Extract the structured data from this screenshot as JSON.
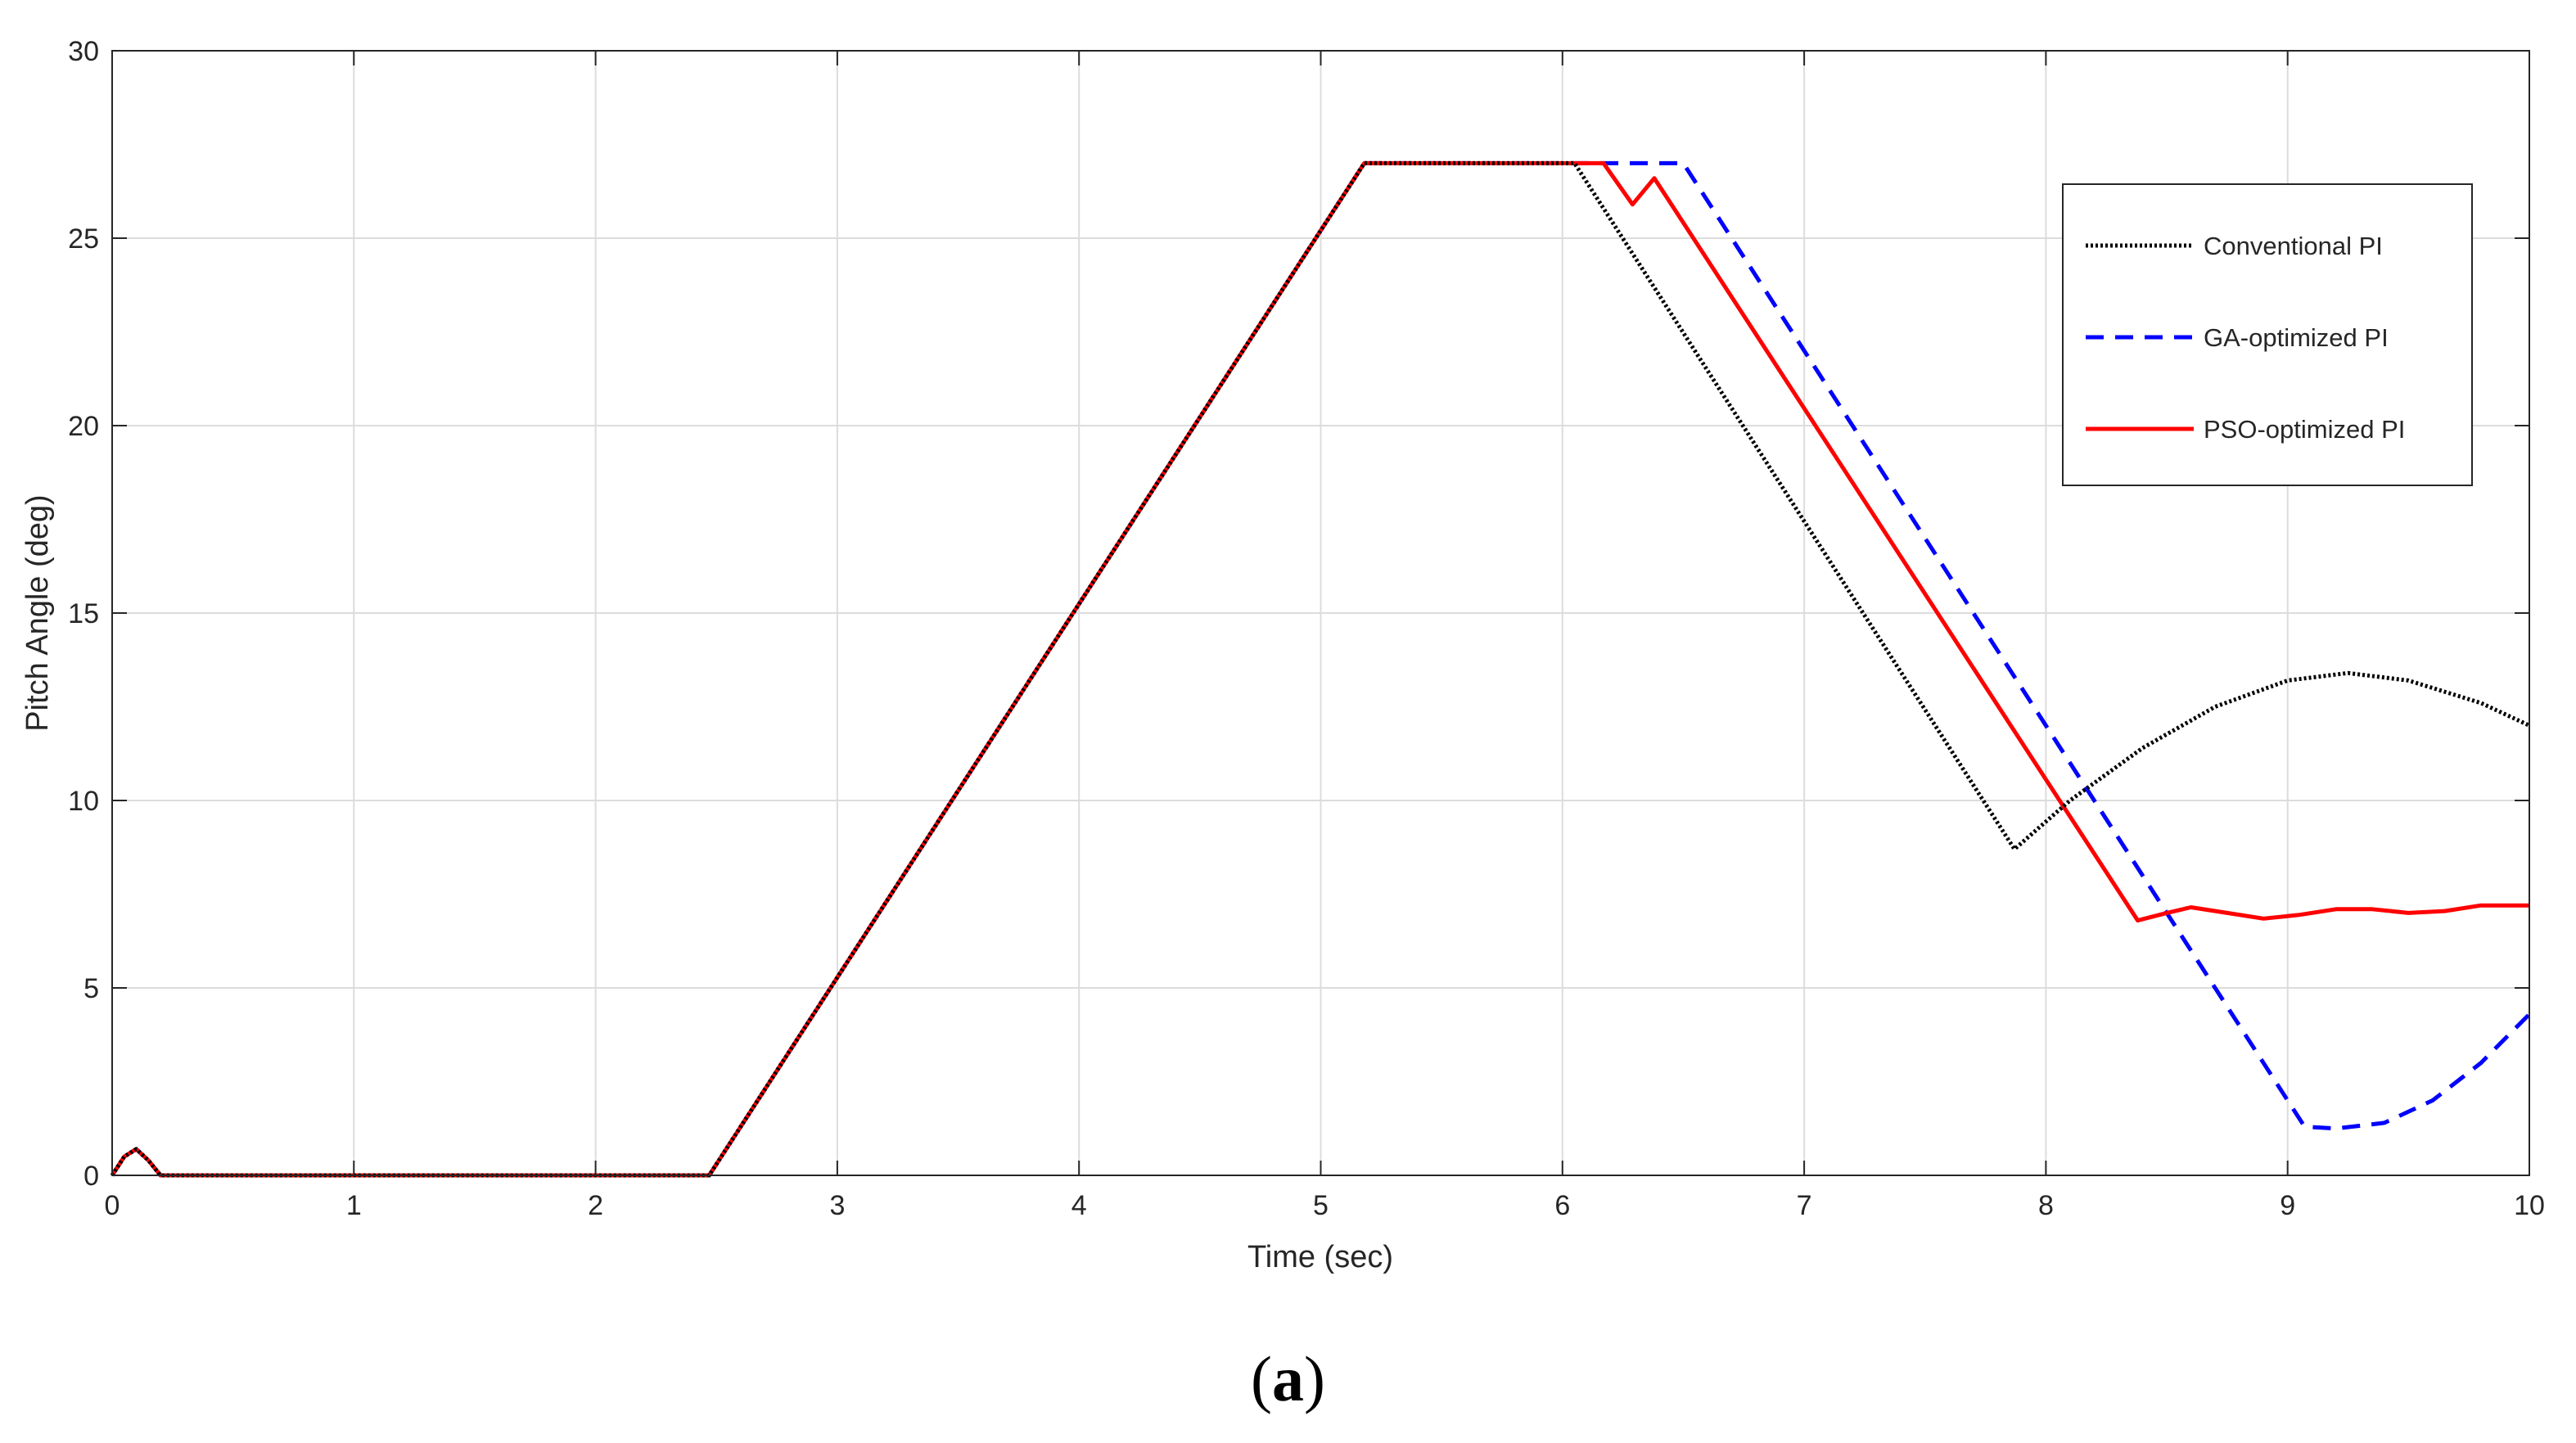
{
  "colors": {
    "conventional": "#000000",
    "ga": "#0000FF",
    "pso": "#FF0000",
    "grid": "#DCDCDC",
    "axes": "#262626"
  },
  "panel_label": {
    "open": "(",
    "letter": "a",
    "close": ")"
  },
  "chart_data": {
    "type": "line",
    "xlabel": "Time (sec)",
    "ylabel": "Pitch Angle (deg)",
    "xlim": [
      0,
      10
    ],
    "ylim": [
      0,
      30
    ],
    "xticks": [
      0,
      1,
      2,
      3,
      4,
      5,
      6,
      7,
      8,
      9,
      10
    ],
    "yticks": [
      0,
      5,
      10,
      15,
      20,
      25,
      30
    ],
    "grid": true,
    "box": true,
    "legend_position": "top-right",
    "series": [
      {
        "name": "Conventional PI",
        "style": "dotted",
        "color_key": "conventional",
        "x": [
          0,
          0.05,
          0.1,
          0.15,
          0.2,
          2.47,
          5.18,
          6.05,
          7.87,
          8.1,
          8.4,
          8.7,
          9.0,
          9.25,
          9.5,
          9.8,
          10.0
        ],
        "y": [
          0,
          0.5,
          0.7,
          0.4,
          0,
          0,
          27,
          27,
          8.7,
          10.0,
          11.4,
          12.5,
          13.2,
          13.4,
          13.2,
          12.6,
          12.0
        ]
      },
      {
        "name": "GA-optimized PI",
        "style": "dashed",
        "color_key": "ga",
        "x": [
          0,
          0.05,
          0.1,
          0.15,
          0.2,
          2.47,
          5.18,
          6.5,
          9.07,
          9.2,
          9.4,
          9.6,
          9.8,
          10.0
        ],
        "y": [
          0,
          0.5,
          0.7,
          0.4,
          0,
          0,
          27,
          27,
          1.3,
          1.25,
          1.4,
          2.0,
          3.0,
          4.3
        ]
      },
      {
        "name": "PSO-optimized PI",
        "style": "solid",
        "color_key": "pso",
        "x": [
          0,
          0.05,
          0.1,
          0.15,
          0.2,
          2.47,
          5.18,
          6.17,
          6.29,
          6.38,
          8.38,
          8.5,
          8.6,
          8.75,
          8.9,
          9.05,
          9.2,
          9.35,
          9.5,
          9.65,
          9.8,
          10.0
        ],
        "y": [
          0,
          0.5,
          0.7,
          0.4,
          0,
          0,
          27,
          27,
          25.9,
          26.6,
          6.8,
          7.0,
          7.15,
          7.0,
          6.85,
          6.95,
          7.1,
          7.1,
          7.0,
          7.05,
          7.2,
          7.2
        ]
      }
    ]
  }
}
